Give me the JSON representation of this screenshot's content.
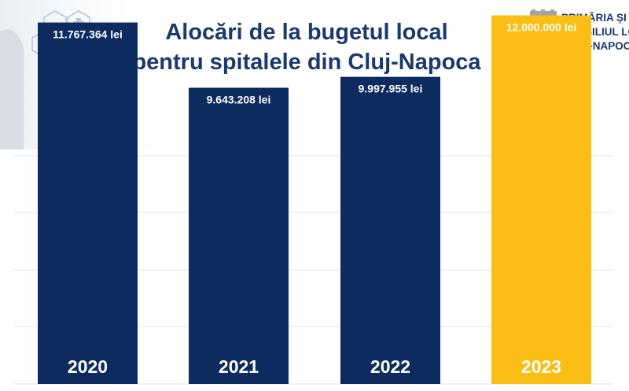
{
  "header": {
    "title_line1": "Alocări de la bugetul local",
    "title_line2": "pentru spitalele din Cluj-Napoca"
  },
  "logo": {
    "line1": "PRIMĂRIA ȘI",
    "line2": "CONSILIUL LO",
    "line3": "CLUJ-NAPOCA"
  },
  "colors": {
    "bar": "#0d2b5e",
    "highlight": "#fbbe15",
    "title": "#1a3a6e",
    "grid": "#e3e3e3"
  },
  "chart_data": {
    "type": "bar",
    "title": "Alocări de la bugetul local pentru spitalele din Cluj-Napoca",
    "categories": [
      "2020",
      "2021",
      "2022",
      "2023"
    ],
    "values": [
      11767364,
      9643208,
      9997955,
      12000000
    ],
    "data_labels": [
      "11.767.364 lei",
      "9.643.208 lei",
      "9.997.955 lei",
      "12.000.000 lei"
    ],
    "highlight": [
      "2023"
    ],
    "ylim": [
      0,
      12500000
    ],
    "grid": true,
    "legend": "none"
  }
}
